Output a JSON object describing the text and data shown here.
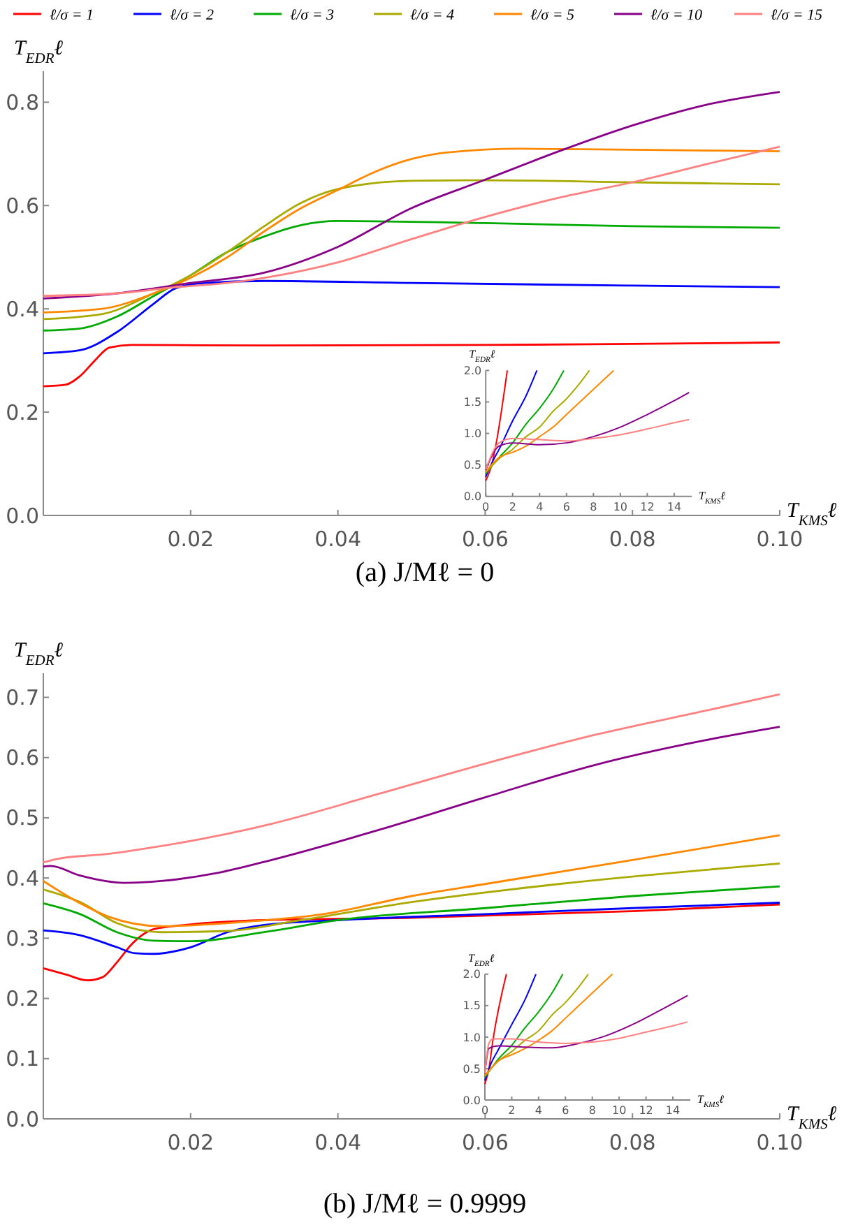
{
  "chart_data": [
    {
      "type": "line",
      "ylabel": "T$_{EDR}$ℓ",
      "xlabel": "T$_{KMS}$ℓ",
      "legend": "top",
      "annotations": [
        "(a) J/Mℓ = 0"
      ],
      "xlim": [
        0,
        0.1
      ],
      "ylim": [
        0,
        0.86
      ],
      "xticks": [
        0.02,
        0.04,
        0.06,
        0.08,
        {
          "value": 0.1,
          "label": "0.10"
        }
      ],
      "yticks": [
        {
          "value": 0,
          "label": "0.0"
        },
        0.2,
        0.4,
        0.6,
        0.8
      ],
      "series": [
        {
          "name": "ℓ/σ = 1",
          "color": "#ff0000",
          "x": [
            0,
            0.003,
            0.005,
            0.007,
            0.009,
            0.012,
            0.03,
            0.06,
            0.08,
            0.1
          ],
          "values": [
            0.25,
            0.253,
            0.27,
            0.3,
            0.325,
            0.33,
            0.329,
            0.33,
            0.332,
            0.335
          ]
        },
        {
          "name": "ℓ/σ = 2",
          "color": "#0000ff",
          "x": [
            0,
            0.005,
            0.01,
            0.015,
            0.018,
            0.022,
            0.03,
            0.05,
            0.08,
            0.1
          ],
          "values": [
            0.314,
            0.32,
            0.355,
            0.41,
            0.44,
            0.45,
            0.454,
            0.45,
            0.445,
            0.442
          ]
        },
        {
          "name": "ℓ/σ = 3",
          "color": "#00aa00",
          "x": [
            0,
            0.005,
            0.01,
            0.015,
            0.02,
            0.025,
            0.03,
            0.035,
            0.04,
            0.06,
            0.08,
            0.1
          ],
          "values": [
            0.358,
            0.362,
            0.385,
            0.425,
            0.465,
            0.51,
            0.54,
            0.562,
            0.57,
            0.566,
            0.56,
            0.557
          ]
        },
        {
          "name": "ℓ/σ = 4",
          "color": "#aaaa00",
          "x": [
            0,
            0.008,
            0.015,
            0.02,
            0.025,
            0.03,
            0.035,
            0.04,
            0.05,
            0.06,
            0.08,
            0.1
          ],
          "values": [
            0.38,
            0.39,
            0.43,
            0.465,
            0.51,
            0.56,
            0.605,
            0.632,
            0.648,
            0.649,
            0.645,
            0.641
          ]
        },
        {
          "name": "ℓ/σ = 5",
          "color": "#ff8800",
          "x": [
            0,
            0.008,
            0.015,
            0.02,
            0.025,
            0.03,
            0.035,
            0.04,
            0.045,
            0.05,
            0.055,
            0.065,
            0.08,
            0.1
          ],
          "values": [
            0.393,
            0.4,
            0.43,
            0.46,
            0.5,
            0.55,
            0.595,
            0.63,
            0.665,
            0.69,
            0.703,
            0.71,
            0.708,
            0.705
          ]
        },
        {
          "name": "ℓ/σ = 10",
          "color": "#880088",
          "x": [
            0,
            0.01,
            0.02,
            0.03,
            0.04,
            0.05,
            0.06,
            0.07,
            0.08,
            0.09,
            0.1
          ],
          "values": [
            0.42,
            0.43,
            0.45,
            0.47,
            0.52,
            0.595,
            0.65,
            0.705,
            0.755,
            0.795,
            0.82
          ]
        },
        {
          "name": "ℓ/σ = 15",
          "color": "#ff8080",
          "x": [
            0,
            0.01,
            0.018,
            0.025,
            0.03,
            0.04,
            0.05,
            0.06,
            0.07,
            0.08,
            0.09,
            0.1
          ],
          "values": [
            0.425,
            0.43,
            0.442,
            0.45,
            0.46,
            0.49,
            0.535,
            0.578,
            0.615,
            0.645,
            0.68,
            0.714
          ]
        }
      ]
    },
    {
      "type": "line",
      "ylabel": "T$_{EDR}$ℓ",
      "xlabel": "T$_{KMS}$ℓ",
      "xlim": [
        0,
        15.3
      ],
      "ylim": [
        0,
        2
      ],
      "xticks": [
        0,
        2,
        4,
        6,
        8,
        10,
        12,
        14
      ],
      "yticks": [
        {
          "value": 0,
          "label": "0.0"
        },
        0.5,
        {
          "value": 1,
          "label": "1.0"
        },
        1.5,
        {
          "value": 2,
          "label": "2.0"
        }
      ],
      "series": [
        {
          "color": "#ff0000",
          "x": [
            0,
            0.3,
            1.6
          ],
          "values": [
            0.25,
            0.4,
            2
          ]
        },
        {
          "color": "#0000ff",
          "x": [
            0,
            0.5,
            1,
            2,
            3,
            3.8
          ],
          "values": [
            0.31,
            0.55,
            0.75,
            1.2,
            1.6,
            2
          ]
        },
        {
          "color": "#00aa00",
          "x": [
            0,
            1,
            2,
            3,
            4,
            5,
            5.8
          ],
          "values": [
            0.36,
            0.62,
            0.85,
            1.15,
            1.4,
            1.7,
            2
          ]
        },
        {
          "color": "#aaaa00",
          "x": [
            0,
            1,
            2,
            3,
            4,
            5,
            6,
            7,
            7.7
          ],
          "values": [
            0.38,
            0.6,
            0.75,
            0.95,
            1.1,
            1.35,
            1.55,
            1.8,
            2
          ]
        },
        {
          "color": "#ff8800",
          "x": [
            0,
            1,
            2,
            3,
            4,
            5,
            6,
            7,
            8,
            9.5
          ],
          "values": [
            0.39,
            0.62,
            0.7,
            0.8,
            0.95,
            1.1,
            1.3,
            1.5,
            1.7,
            2
          ]
        },
        {
          "color": "#880088",
          "x": [
            0,
            1,
            2,
            4,
            6,
            8,
            10,
            12,
            14,
            15.1
          ],
          "values": [
            0.42,
            0.8,
            0.85,
            0.82,
            0.85,
            0.95,
            1.1,
            1.3,
            1.52,
            1.65
          ]
        },
        {
          "color": "#ff8080",
          "x": [
            0,
            1,
            2,
            4,
            6,
            8,
            10,
            12,
            14,
            15.1
          ],
          "values": [
            0.43,
            0.85,
            0.92,
            0.9,
            0.88,
            0.92,
            0.98,
            1.07,
            1.17,
            1.22
          ]
        }
      ]
    },
    {
      "type": "line",
      "ylabel": "T$_{EDR}$ℓ",
      "xlabel": "T$_{KMS}$ℓ",
      "annotations": [
        "(b) J/Mℓ = 0.9999"
      ],
      "xlim": [
        0,
        0.1
      ],
      "ylim": [
        0,
        0.74
      ],
      "xticks": [
        0.02,
        0.04,
        0.06,
        0.08,
        {
          "value": 0.1,
          "label": "0.10"
        }
      ],
      "yticks": [
        {
          "value": 0,
          "label": "0.0"
        },
        0.1,
        0.2,
        0.3,
        0.4,
        0.5,
        0.6,
        0.7
      ],
      "series": [
        {
          "color": "#ff0000",
          "x": [
            0,
            0.003,
            0.006,
            0.008,
            0.01,
            0.012,
            0.015,
            0.02,
            0.03,
            0.05,
            0.08,
            0.1
          ],
          "values": [
            0.25,
            0.24,
            0.23,
            0.235,
            0.26,
            0.29,
            0.315,
            0.323,
            0.33,
            0.334,
            0.345,
            0.356
          ]
        },
        {
          "color": "#0000ff",
          "x": [
            0,
            0.005,
            0.01,
            0.0125,
            0.015,
            0.02,
            0.025,
            0.03,
            0.04,
            0.06,
            0.08,
            0.1
          ],
          "values": [
            0.313,
            0.305,
            0.285,
            0.275,
            0.274,
            0.285,
            0.31,
            0.322,
            0.33,
            0.34,
            0.35,
            0.359
          ]
        },
        {
          "color": "#00aa00",
          "x": [
            0,
            0.005,
            0.01,
            0.015,
            0.02,
            0.03,
            0.04,
            0.06,
            0.08,
            0.1
          ],
          "values": [
            0.358,
            0.34,
            0.31,
            0.296,
            0.295,
            0.31,
            0.33,
            0.35,
            0.37,
            0.386
          ]
        },
        {
          "color": "#aaaa00",
          "x": [
            0,
            0.005,
            0.01,
            0.016,
            0.025,
            0.035,
            0.05,
            0.07,
            0.1
          ],
          "values": [
            0.381,
            0.36,
            0.325,
            0.31,
            0.312,
            0.33,
            0.36,
            0.39,
            0.424
          ]
        },
        {
          "color": "#ff8800",
          "x": [
            0,
            0.005,
            0.0088,
            0.016,
            0.027,
            0.038,
            0.05,
            0.06,
            0.08,
            0.1
          ],
          "values": [
            0.395,
            0.358,
            0.336,
            0.32,
            0.327,
            0.34,
            0.37,
            0.39,
            0.43,
            0.471
          ]
        },
        {
          "color": "#880088",
          "x": [
            0,
            0.001,
            0.005,
            0.011,
            0.016,
            0.0235,
            0.031,
            0.0456,
            0.06,
            0.075,
            0.09,
            0.1
          ],
          "values": [
            0.419,
            0.42,
            0.404,
            0.392,
            0.395,
            0.408,
            0.43,
            0.48,
            0.534,
            0.588,
            0.629,
            0.651
          ]
        },
        {
          "color": "#ff8080",
          "x": [
            0,
            0.002,
            0.0088,
            0.016,
            0.031,
            0.0456,
            0.06,
            0.075,
            0.09,
            0.1
          ],
          "values": [
            0.426,
            0.432,
            0.44,
            0.453,
            0.49,
            0.54,
            0.59,
            0.638,
            0.678,
            0.705
          ]
        }
      ]
    },
    {
      "type": "line",
      "ylabel": "T$_{EDR}$ℓ",
      "xlabel": "T$_{KMS}$ℓ",
      "xlim": [
        0,
        15.3
      ],
      "ylim": [
        0,
        2
      ],
      "xticks": [
        0,
        2,
        4,
        6,
        8,
        10,
        12,
        14
      ],
      "yticks": [
        {
          "value": 0,
          "label": "0.0"
        },
        0.5,
        {
          "value": 1,
          "label": "1.0"
        },
        1.5,
        {
          "value": 2,
          "label": "2.0"
        }
      ],
      "series": [
        {
          "color": "#ff0000",
          "x": [
            0,
            0.3,
            0.6,
            1.6
          ],
          "values": [
            0.25,
            0.5,
            0.95,
            2
          ]
        },
        {
          "color": "#0000ff",
          "x": [
            0,
            0.5,
            1,
            2,
            3,
            3.8
          ],
          "values": [
            0.31,
            0.6,
            0.8,
            1.2,
            1.6,
            2
          ]
        },
        {
          "color": "#00aa00",
          "x": [
            0,
            1,
            2,
            3,
            4,
            5,
            5.8
          ],
          "values": [
            0.36,
            0.65,
            0.87,
            1.15,
            1.4,
            1.7,
            2
          ]
        },
        {
          "color": "#aaaa00",
          "x": [
            0,
            1,
            2,
            3,
            4,
            5,
            6,
            7,
            7.7
          ],
          "values": [
            0.38,
            0.62,
            0.77,
            0.95,
            1.1,
            1.35,
            1.55,
            1.8,
            2
          ]
        },
        {
          "color": "#ff8800",
          "x": [
            0,
            1,
            2,
            3,
            4,
            5,
            6,
            7,
            8,
            9.5
          ],
          "values": [
            0.39,
            0.62,
            0.72,
            0.82,
            0.95,
            1.1,
            1.3,
            1.5,
            1.7,
            2
          ]
        },
        {
          "color": "#880088",
          "x": [
            0,
            0.3,
            1,
            3,
            5,
            7,
            9,
            11,
            13,
            15.1
          ],
          "values": [
            0.42,
            0.82,
            0.86,
            0.84,
            0.83,
            0.9,
            1.02,
            1.2,
            1.42,
            1.66
          ]
        },
        {
          "color": "#ff8080",
          "x": [
            0,
            0.3,
            0.6,
            2,
            4,
            6,
            8,
            10,
            12,
            14,
            15.1
          ],
          "values": [
            0.43,
            0.9,
            0.97,
            0.97,
            0.92,
            0.9,
            0.92,
            0.98,
            1.08,
            1.18,
            1.24
          ]
        }
      ]
    }
  ]
}
